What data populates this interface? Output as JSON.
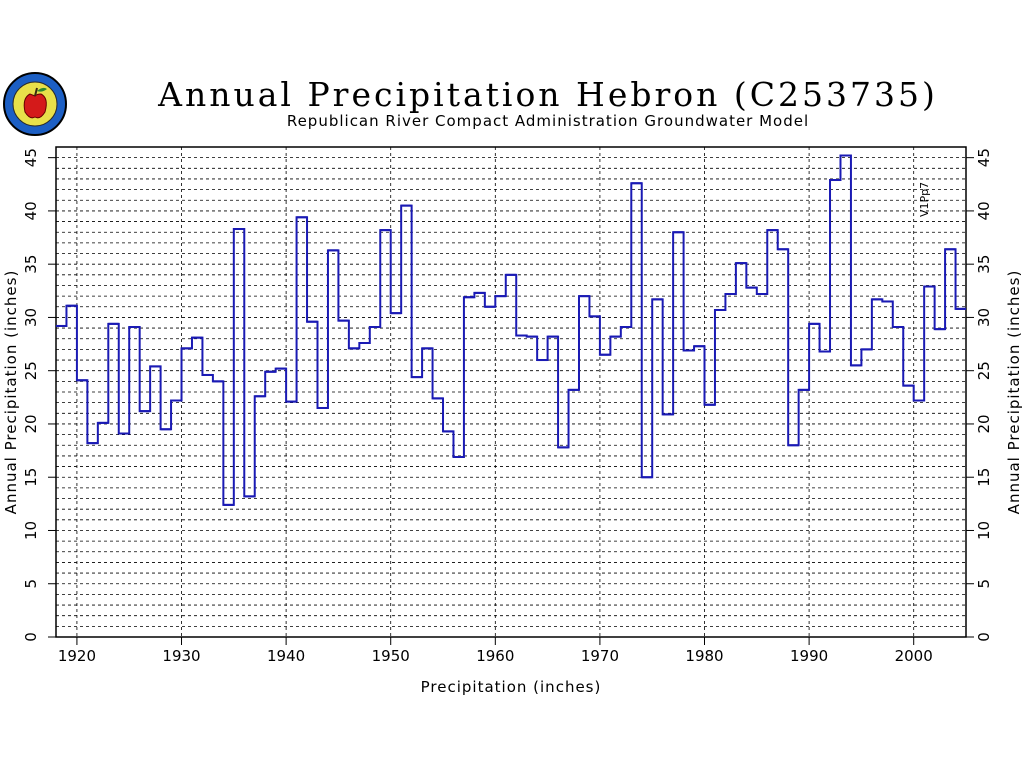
{
  "chart_data": {
    "type": "line",
    "style": "step",
    "title": "Annual Precipitation Hebron (C253735)",
    "subtitle": "Republican River Compact Administration Groundwater Model",
    "xlabel": "Precipitation  (inches)",
    "ylabel": "Annual  Precipitation  (inches)",
    "ylabel_right": "Annual  Precipitation  (inches)",
    "annotation": "V1Pp7",
    "xlim": [
      1918,
      2005
    ],
    "ylim": [
      0,
      46
    ],
    "xticks": [
      1920,
      1930,
      1940,
      1950,
      1960,
      1970,
      1980,
      1990,
      2000
    ],
    "yticks": [
      0,
      5,
      10,
      15,
      20,
      25,
      30,
      35,
      40,
      45
    ],
    "grid": true,
    "line_color": "#1a1ab4",
    "series": [
      {
        "x": [
          1918,
          1919,
          1920,
          1921,
          1922,
          1923,
          1924,
          1925,
          1926,
          1927,
          1928,
          1929,
          1930,
          1931,
          1932,
          1933,
          1934,
          1935,
          1936,
          1937,
          1938,
          1939,
          1940,
          1941,
          1942,
          1943,
          1944,
          1945,
          1946,
          1947,
          1948,
          1949,
          1950,
          1951,
          1952,
          1953,
          1954,
          1955,
          1956,
          1957,
          1958,
          1959,
          1960,
          1961,
          1962,
          1963,
          1964,
          1965,
          1966,
          1967,
          1968,
          1969,
          1970,
          1971,
          1972,
          1973,
          1974,
          1975,
          1976,
          1977,
          1978,
          1979,
          1980,
          1981,
          1982,
          1983,
          1984,
          1985,
          1986,
          1987,
          1988,
          1989,
          1990,
          1991,
          1992,
          1993,
          1994,
          1995,
          1996,
          1997,
          1998,
          1999,
          2000,
          2001,
          2002,
          2003,
          2004
        ],
        "values": [
          29.2,
          31.1,
          24.1,
          18.2,
          20.1,
          29.4,
          19.1,
          29.1,
          21.2,
          25.4,
          19.5,
          22.2,
          27.1,
          28.1,
          24.6,
          24.0,
          12.4,
          38.3,
          13.2,
          22.6,
          24.9,
          25.2,
          22.1,
          39.4,
          29.6,
          21.5,
          36.3,
          29.7,
          27.1,
          27.6,
          29.1,
          38.2,
          30.4,
          40.5,
          24.4,
          27.1,
          22.4,
          19.3,
          16.9,
          31.9,
          32.3,
          31.0,
          32.0,
          34.0,
          28.3,
          28.2,
          26.0,
          28.2,
          17.8,
          23.2,
          32.0,
          30.1,
          26.5,
          28.2,
          29.1,
          42.6,
          15.0,
          31.7,
          20.9,
          38.0,
          26.9,
          27.3,
          21.8,
          30.7,
          32.2,
          35.1,
          32.8,
          32.2,
          38.2,
          36.4,
          18.0,
          23.2,
          29.4,
          26.8,
          42.9,
          45.2,
          25.5,
          27.0,
          31.7,
          31.5,
          29.1,
          23.6,
          22.2,
          32.9,
          28.9,
          36.4,
          30.8
        ]
      }
    ]
  }
}
